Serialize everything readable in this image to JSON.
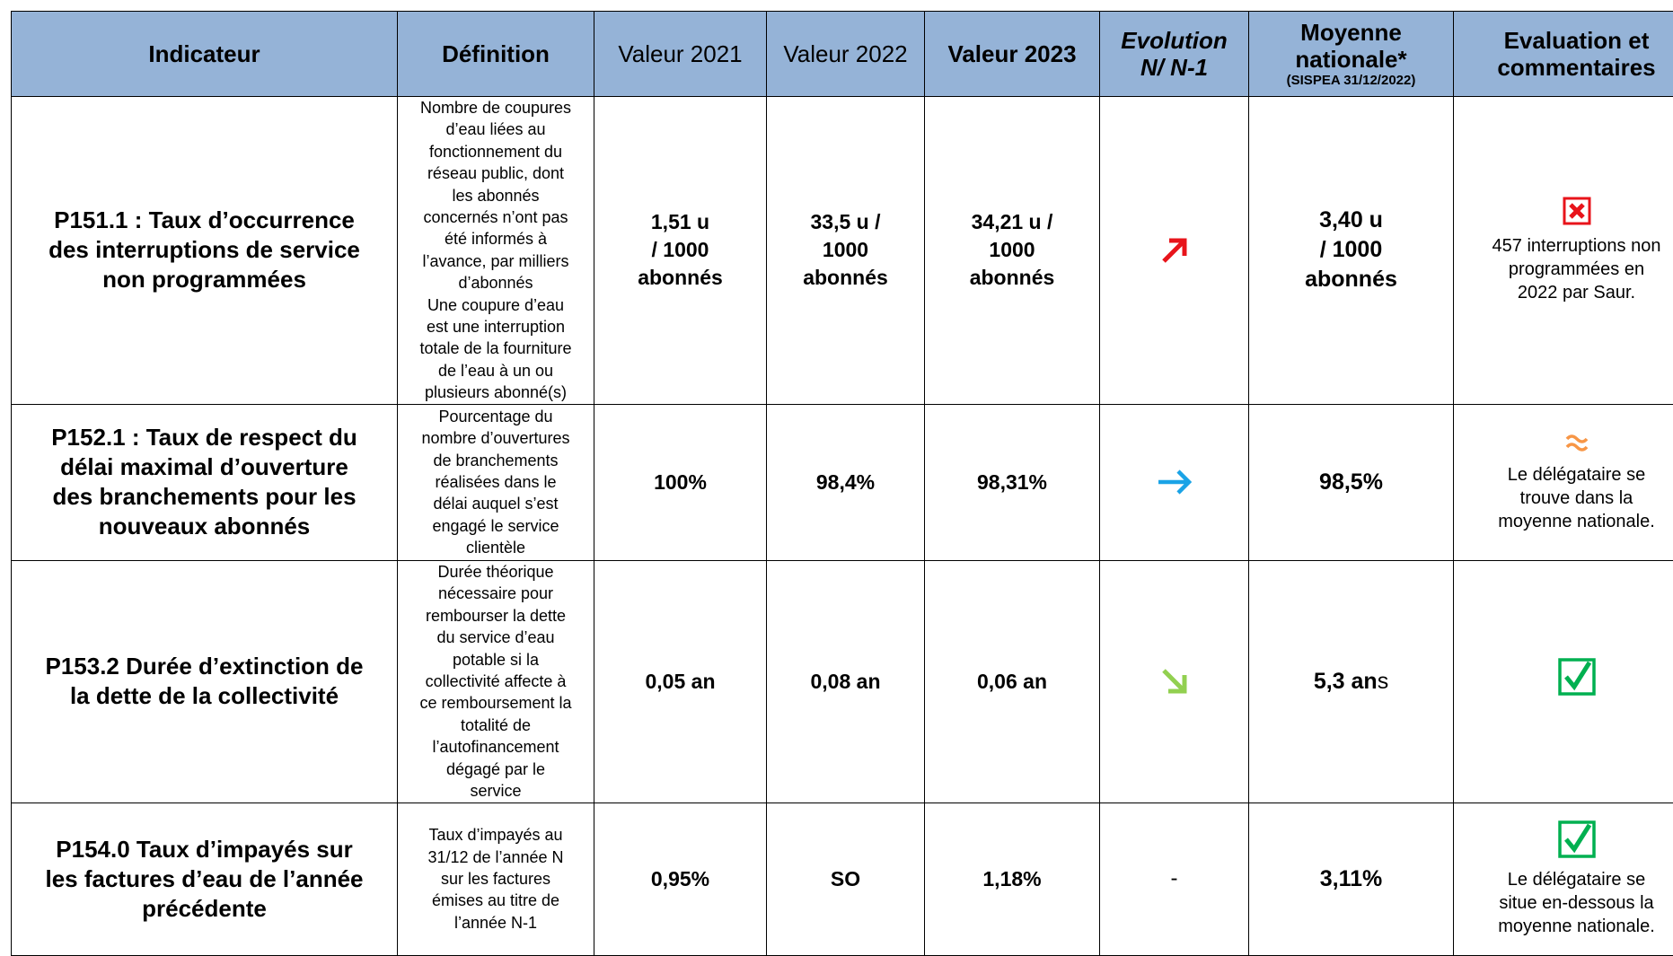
{
  "header": {
    "indicateur": "Indicateur",
    "definition": "Définition",
    "valeur_2021": "Valeur 2021",
    "valeur_2022": "Valeur 2022",
    "valeur_2023": "Valeur 2023",
    "evolution": [
      "Evolution",
      "N/ N-1"
    ],
    "moyenne": [
      "Moyenne",
      "nationale*"
    ],
    "moyenne_source": "(SISPEA 31/12/2022)",
    "evaluation": [
      "Evaluation et",
      "commentaires"
    ]
  },
  "rows": [
    {
      "indicateur": [
        "P151.1 : Taux d’occurrence",
        "des interruptions de service",
        "non programmées"
      ],
      "definition": [
        "Nombre de coupures",
        "d’eau liées au",
        "fonctionnement du",
        "réseau public, dont",
        "les abonnés",
        "concernés n’ont pas",
        "été informés à",
        "l’avance, par milliers",
        "d’abonnés",
        "Une coupure d’eau",
        "est une interruption",
        "totale de la fourniture",
        "de l’eau à un ou",
        "plusieurs abonné(s)"
      ],
      "valeur_2021": [
        "1,51 u",
        "/ 1000",
        "abonnés"
      ],
      "valeur_2022": [
        "33,5 u /",
        "1000",
        "abonnés"
      ],
      "valeur_2023": [
        "34,21 u /",
        "1000",
        "abonnés"
      ],
      "moyenne": [
        "3,40 u",
        "/ 1000",
        "abonnés"
      ],
      "commentaire": [
        "457 interruptions non",
        "programmées en",
        "2022 par Saur."
      ]
    },
    {
      "indicateur": [
        "P152.1 : Taux de respect du",
        "délai maximal d’ouverture",
        "des branchements pour les",
        "nouveaux abonnés"
      ],
      "definition": [
        "Pourcentage du",
        "nombre d’ouvertures",
        "de branchements",
        "réalisées dans le",
        "délai auquel s’est",
        "engagé le service",
        "clientèle"
      ],
      "valeur_2021": [
        "100%"
      ],
      "valeur_2022": [
        "98,4%"
      ],
      "valeur_2023": [
        "98,31%"
      ],
      "moyenne": [
        "98,5%"
      ],
      "commentaire": [
        "Le délégataire se",
        "trouve dans la",
        "moyenne nationale."
      ]
    },
    {
      "indicateur": [
        "P153.2 Durée d’extinction de",
        "la dette de la collectivité"
      ],
      "definition": [
        "Durée théorique",
        "nécessaire pour",
        "rembourser la dette",
        "du service d’eau",
        "potable si la",
        "collectivité affecte à",
        "ce remboursement la",
        "totalité de",
        "l’autofinancement",
        "dégagé par le",
        "service"
      ],
      "valeur_2021": [
        "0,05 an"
      ],
      "valeur_2022": [
        "0,08 an"
      ],
      "valeur_2023": [
        "0,06 an"
      ],
      "moyenne_parts": [
        "5,3 an",
        "s"
      ]
    },
    {
      "indicateur": [
        "P154.0 Taux d’impayés sur",
        "les factures d’eau de l’année",
        "précédente"
      ],
      "definition": [
        "Taux d’impayés au",
        "31/12 de l’année N",
        "sur les factures",
        "émises au titre de",
        "l’année N-1"
      ],
      "valeur_2021": [
        "0,95%"
      ],
      "valeur_2022": [
        "SO"
      ],
      "valeur_2023": [
        "1,18%"
      ],
      "evolution": "-",
      "moyenne": [
        "3,11%"
      ],
      "commentaire": [
        "Le délégataire se",
        "situe en-dessous la",
        "moyenne nationale."
      ]
    }
  ]
}
